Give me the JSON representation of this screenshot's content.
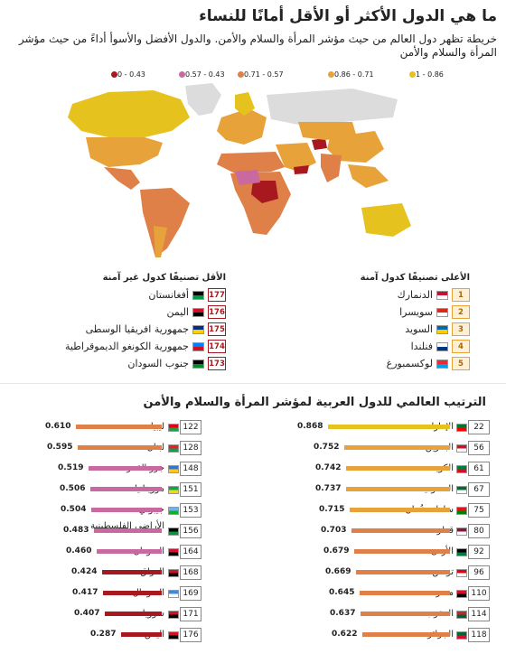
{
  "title": "ما هي الدول الأكثر أو الأقل أمانًا للنساء",
  "subtitle": "خريطة تظهر دول العالم من حيث مؤشر المرأة والسلام والأمن. والدول الأفضل والأسوأ أداءً من حيث مؤشر المرأة والسلام والأمن",
  "legend": [
    {
      "label": "1 - 0.86",
      "color": "#e6c21e"
    },
    {
      "label": "0.86 - 0.71",
      "color": "#e8a23a"
    },
    {
      "label": "0.71 - 0.57",
      "color": "#de8048"
    },
    {
      "label": "0.57 - 0.43",
      "color": "#c86aa0"
    },
    {
      "label": "0 - 0.43",
      "color": "#a8191f"
    }
  ],
  "top_countries": {
    "heading": "الأعلى تصنيفًا كدول آمنة",
    "items": [
      {
        "rank": "1",
        "name": "الدنمارك",
        "flag": [
          "#c8102e",
          "#ffffff"
        ]
      },
      {
        "rank": "2",
        "name": "سويسرا",
        "flag": [
          "#d52b1e",
          "#ffffff"
        ]
      },
      {
        "rank": "3",
        "name": "السويد",
        "flag": [
          "#006aa7",
          "#fecc00"
        ]
      },
      {
        "rank": "4",
        "name": "فنلندا",
        "flag": [
          "#ffffff",
          "#003580"
        ]
      },
      {
        "rank": "5",
        "name": "لوكسمبورغ",
        "flag": [
          "#ed2939",
          "#00a1de"
        ]
      }
    ]
  },
  "bottom_countries": {
    "heading": "الأقل تصنيفًا كدول غير آمنة",
    "items": [
      {
        "rank": "177",
        "name": "أفغانستان",
        "flag": [
          "#000000",
          "#009a44"
        ]
      },
      {
        "rank": "176",
        "name": "اليمن",
        "flag": [
          "#ce1126",
          "#000000"
        ]
      },
      {
        "rank": "175",
        "name": "جمهورية افريقيا الوسطى",
        "flag": [
          "#003082",
          "#ffce00"
        ]
      },
      {
        "rank": "174",
        "name": "جمهورية الكونغو الديموقراطية",
        "flag": [
          "#007fff",
          "#ce1021"
        ]
      },
      {
        "rank": "173",
        "name": "جنوب السودان",
        "flag": [
          "#000000",
          "#078930"
        ]
      }
    ]
  },
  "section_title": "الترتيب العالمي للدول العربية لمؤشر المرأة والسلام والأمن",
  "chart_data": {
    "type": "bar",
    "xlim": [
      0,
      1
    ],
    "columns": [
      {
        "items": [
          {
            "rank": "22",
            "name": "الإمارات",
            "value": 0.868,
            "label": "0.868",
            "color": "#e6c21e",
            "flag": [
              "#00732f",
              "#ff0000"
            ]
          },
          {
            "rank": "56",
            "name": "البحرين",
            "value": 0.752,
            "label": "0.752",
            "color": "#e8a23a",
            "flag": [
              "#ce1126",
              "#ffffff"
            ]
          },
          {
            "rank": "61",
            "name": "الكويت",
            "value": 0.742,
            "label": "0.742",
            "color": "#e8a23a",
            "flag": [
              "#007a3d",
              "#ce1126"
            ]
          },
          {
            "rank": "67",
            "name": "السعودية",
            "value": 0.737,
            "label": "0.737",
            "color": "#e8a23a",
            "flag": [
              "#006c35",
              "#ffffff"
            ]
          },
          {
            "rank": "75",
            "name": "سلطنة عُمان",
            "value": 0.715,
            "label": "0.715",
            "color": "#e8a23a",
            "flag": [
              "#db161b",
              "#008000"
            ]
          },
          {
            "rank": "80",
            "name": "قطر",
            "value": 0.703,
            "label": "0.703",
            "color": "#de8048",
            "flag": [
              "#8a1538",
              "#ffffff"
            ]
          },
          {
            "rank": "92",
            "name": "الأردن",
            "value": 0.679,
            "label": "0.679",
            "color": "#de8048",
            "flag": [
              "#000000",
              "#007a3d"
            ]
          },
          {
            "rank": "96",
            "name": "تونس",
            "value": 0.669,
            "label": "0.669",
            "color": "#de8048",
            "flag": [
              "#e70013",
              "#ffffff"
            ]
          },
          {
            "rank": "110",
            "name": "مصر",
            "value": 0.645,
            "label": "0.645",
            "color": "#de8048",
            "flag": [
              "#ce1126",
              "#000000"
            ]
          },
          {
            "rank": "114",
            "name": "المغرب",
            "value": 0.637,
            "label": "0.637",
            "color": "#de8048",
            "flag": [
              "#c1272d",
              "#006233"
            ]
          },
          {
            "rank": "118",
            "name": "الجزائر",
            "value": 0.622,
            "label": "0.622",
            "color": "#de8048",
            "flag": [
              "#006633",
              "#d21034"
            ]
          }
        ]
      },
      {
        "items": [
          {
            "rank": "122",
            "name": "ليبيا",
            "value": 0.61,
            "label": "0.610",
            "color": "#de8048",
            "flag": [
              "#e70013",
              "#239e46"
            ]
          },
          {
            "rank": "128",
            "name": "لبنان",
            "value": 0.595,
            "label": "0.595",
            "color": "#de8048",
            "flag": [
              "#ed1c24",
              "#00a651"
            ]
          },
          {
            "rank": "148",
            "name": "جزر القمر",
            "value": 0.519,
            "label": "0.519",
            "color": "#c86aa0",
            "flag": [
              "#3a75c4",
              "#ffc61e"
            ]
          },
          {
            "rank": "151",
            "name": "موريتانيا",
            "value": 0.506,
            "label": "0.506",
            "color": "#c86aa0",
            "flag": [
              "#00a95c",
              "#ffd700"
            ]
          },
          {
            "rank": "153",
            "name": "جيبوتي",
            "value": 0.504,
            "label": "0.504",
            "color": "#c86aa0",
            "flag": [
              "#6ab2e7",
              "#12ad2b"
            ]
          },
          {
            "rank": "156",
            "name": "الأراضي الفلسطينية",
            "value": 0.483,
            "label": "0.483",
            "color": "#c86aa0",
            "flag": [
              "#000000",
              "#009736"
            ]
          },
          {
            "rank": "164",
            "name": "السودان",
            "value": 0.46,
            "label": "0.460",
            "color": "#c86aa0",
            "flag": [
              "#d21034",
              "#000000"
            ]
          },
          {
            "rank": "168",
            "name": "العراق",
            "value": 0.424,
            "label": "0.424",
            "color": "#a8191f",
            "flag": [
              "#ce1126",
              "#000000"
            ]
          },
          {
            "rank": "169",
            "name": "الصومال",
            "value": 0.417,
            "label": "0.417",
            "color": "#a8191f",
            "flag": [
              "#4189dd",
              "#ffffff"
            ]
          },
          {
            "rank": "171",
            "name": "سوريا",
            "value": 0.407,
            "label": "0.407",
            "color": "#a8191f",
            "flag": [
              "#ce1126",
              "#000000"
            ]
          },
          {
            "rank": "176",
            "name": "اليمن",
            "value": 0.287,
            "label": "0.287",
            "color": "#a8191f",
            "flag": [
              "#ce1126",
              "#000000"
            ]
          }
        ]
      }
    ]
  }
}
